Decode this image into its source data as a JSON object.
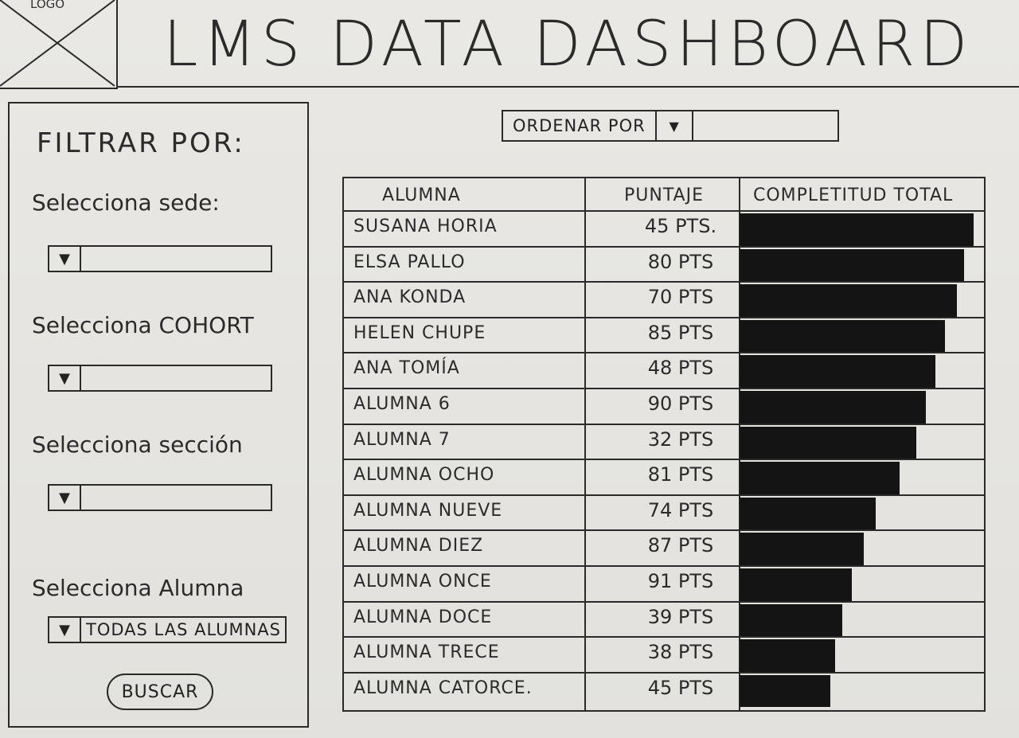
{
  "header": {
    "logo_text": "LOGO",
    "title": "LMS DATA DASHBOARD"
  },
  "sidebar": {
    "filter_title": "FILTRAR POR:",
    "sede": {
      "label": "Selecciona sede:",
      "value": ""
    },
    "cohort": {
      "label": "Selecciona COHORT",
      "value": ""
    },
    "seccion": {
      "label": "Selecciona sección",
      "value": ""
    },
    "alumna": {
      "label": "Selecciona Alumna",
      "value": "TODAS LAS ALUMNAS"
    },
    "search_label": "BUSCAR"
  },
  "order": {
    "label": "ORDENAR POR",
    "value": ""
  },
  "table": {
    "headers": [
      "ALUMNA",
      "PUNTAJE",
      "COMPLETITUD TOTAL"
    ],
    "rows": [
      {
        "name": "SUSANA HORIA",
        "score": "45 PTS.",
        "completion": 0.98
      },
      {
        "name": "ELSA PALLO",
        "score": "80 PTS",
        "completion": 0.94
      },
      {
        "name": "ANA KONDA",
        "score": "70 PTS",
        "completion": 0.91
      },
      {
        "name": "HELEN CHUPE",
        "score": "85 PTS",
        "completion": 0.86
      },
      {
        "name": "ANA TOMÍA",
        "score": "48 PTS",
        "completion": 0.82
      },
      {
        "name": "ALUMNA 6",
        "score": "90 PTS",
        "completion": 0.78
      },
      {
        "name": "ALUMNA 7",
        "score": "32 PTS",
        "completion": 0.74
      },
      {
        "name": "ALUMNA OCHO",
        "score": "81 PTS",
        "completion": 0.67
      },
      {
        "name": "ALUMNA NUEVE",
        "score": "74 PTS",
        "completion": 0.57
      },
      {
        "name": "ALUMNA DIEZ",
        "score": "87 PTS",
        "completion": 0.52
      },
      {
        "name": "ALUMNA ONCE",
        "score": "91 PTS",
        "completion": 0.47
      },
      {
        "name": "ALUMNA DOCE",
        "score": "39 PTS",
        "completion": 0.43
      },
      {
        "name": "ALUMNA TRECE",
        "score": "38 PTS",
        "completion": 0.4
      },
      {
        "name": "ALUMNA CATORCE.",
        "score": "45 PTS",
        "completion": 0.38
      }
    ]
  },
  "icons": {
    "dropdown": "triangle-down-icon",
    "logo": "placeholder-x-icon"
  }
}
